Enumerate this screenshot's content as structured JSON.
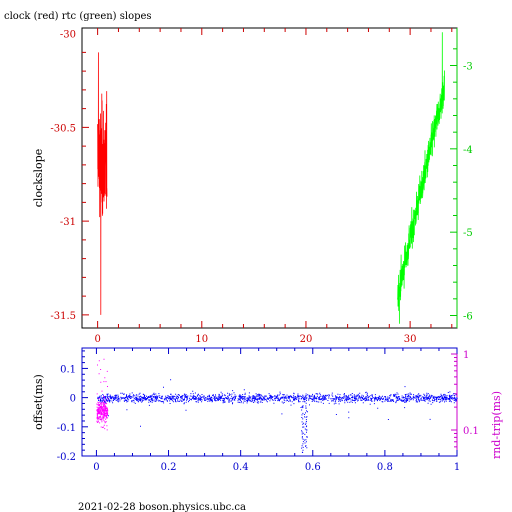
{
  "title": "clock (red) rtc (green) slopes",
  "footer": "2021-02-28  boson.physics.ubc.ca",
  "chart_data": [
    {
      "type": "line",
      "xlim": [
        -1.5,
        34.5
      ],
      "ylim_left": [
        -31.57,
        -29.97
      ],
      "ylim_right": [
        -6.15,
        -2.55
      ],
      "ylabel": "clockslope",
      "x_ticks": [
        0,
        10,
        20,
        30
      ],
      "y_ticks_left": [
        -30,
        -30.5,
        -31,
        -31.5
      ],
      "y_ticks_right": [
        -3,
        -4,
        -5,
        -6
      ],
      "colors": {
        "axes": "#000000",
        "x_ticks": "#cc0000",
        "left_ticks": "#cc0000",
        "right_ticks": "#00cc00"
      },
      "series": [
        {
          "color": "#ff0000",
          "axis": "left",
          "x_range": [
            0,
            0.9
          ],
          "points": 120,
          "y_mid": -30.68,
          "y_amplitude": 0.35,
          "y_min": -31.5,
          "y_max": -30.1
        },
        {
          "color": "#00ff00",
          "axis": "right",
          "x_range": [
            28.8,
            33.3
          ],
          "points": 400,
          "y_start": -5.75,
          "y_end": -3.25,
          "y_noise": 0.3,
          "y_min": -6.1,
          "y_max": -2.6
        }
      ]
    },
    {
      "type": "scatter",
      "xlim": [
        -0.04,
        1.0
      ],
      "ylim_left": [
        -0.2,
        0.17
      ],
      "ylabel_left": "offset(ms)",
      "ylabel_right": "rnd-trip(ms)",
      "x_ticks": [
        0,
        0.2,
        0.4,
        0.6,
        0.8,
        1
      ],
      "y_ticks_left": [
        0.1,
        0,
        -0.1,
        -0.2
      ],
      "y_ticks_right": [
        1,
        0.1
      ],
      "right_scale": "log",
      "colors": {
        "axes": "#0000cc",
        "ticks": "#0000cc",
        "right_axis": "#cc00cc"
      },
      "series": [
        {
          "color": "#0000ff",
          "points": 3500,
          "y_mid": 0.0,
          "y_band": 0.03,
          "features": [
            {
              "x": 0.57,
              "dip_to": -0.19
            },
            {
              "x": 0.58,
              "dip_to": -0.17
            }
          ]
        },
        {
          "color": "#ff00ff",
          "x_range": [
            0.0,
            0.03
          ],
          "points": 300,
          "y_min": -0.11,
          "y_max": 0.14
        }
      ]
    }
  ]
}
